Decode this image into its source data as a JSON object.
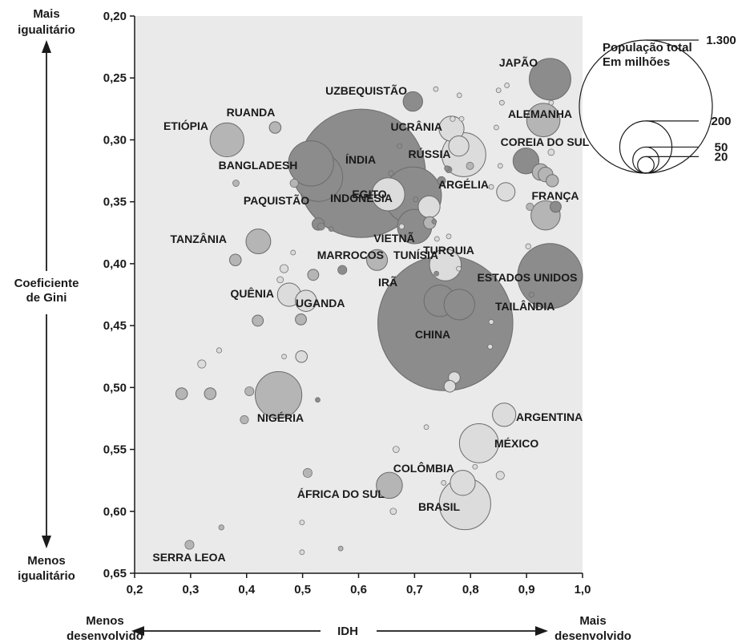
{
  "chart_data": {
    "type": "scatter",
    "xlabel": "IDH",
    "ylabel": "Coeficiente de Gini",
    "xlim": [
      0.2,
      1.0
    ],
    "ylim": [
      0.2,
      0.65
    ],
    "y_inverted": true,
    "grid": false,
    "x_ticks": [
      "0,2",
      "0,3",
      "0,4",
      "0,5",
      "0,6",
      "0,7",
      "0,8",
      "0,9",
      "1,0"
    ],
    "y_ticks": [
      "0,20",
      "0,25",
      "0,30",
      "0,35",
      "0,40",
      "0,45",
      "0,50",
      "0,55",
      "0,60",
      "0,65"
    ],
    "top_label": [
      "Mais",
      "igualitário"
    ],
    "bottom_label": [
      "Menos",
      "igualitário"
    ],
    "y_axis_title": [
      "Coeficiente",
      "de Gini"
    ],
    "x_left_label": [
      "Menos",
      "desenvolvido"
    ],
    "x_right_label": [
      "Mais",
      "desenvolvido"
    ],
    "legend": {
      "title": [
        "População total",
        "Em milhões"
      ],
      "sizes": [
        "1.300",
        "200",
        "50",
        "20"
      ],
      "size_values": [
        1300,
        200,
        50,
        20
      ],
      "placement": "top-right"
    },
    "colors": {
      "plot_bg": "#eaeaea",
      "dark": "#8c8c8c",
      "mid": "#b5b5b5",
      "light": "#dcdcdc",
      "stroke": "#6b6b6b"
    },
    "points": [
      {
        "label": "CHINA",
        "x": 0.755,
        "y": 0.448,
        "pop": 1340,
        "shade": "dark"
      },
      {
        "label": "ÍNDIA",
        "x": 0.605,
        "y": 0.327,
        "pop": 1210,
        "shade": "dark"
      },
      {
        "label": "ESTADOS UNIDOS",
        "x": 0.942,
        "y": 0.41,
        "pop": 310,
        "shade": "dark"
      },
      {
        "label": "INDONÉSIA",
        "x": 0.697,
        "y": 0.345,
        "pop": 240,
        "shade": "dark"
      },
      {
        "label": "BRASIL",
        "x": 0.79,
        "y": 0.594,
        "pop": 195,
        "shade": "light"
      },
      {
        "label": "PAQUISTÃO",
        "x": 0.528,
        "y": 0.33,
        "pop": 175,
        "shade": "dark"
      },
      {
        "label": "NIGÉRIA",
        "x": 0.457,
        "y": 0.506,
        "pop": 160,
        "shade": "mid"
      },
      {
        "label": "BANGLADESH",
        "x": 0.515,
        "y": 0.319,
        "pop": 150,
        "shade": "dark"
      },
      {
        "label": "RÚSSIA",
        "x": 0.788,
        "y": 0.312,
        "pop": 142,
        "shade": "light"
      },
      {
        "label": "JAPÃO",
        "x": 0.942,
        "y": 0.251,
        "pop": 127,
        "shade": "dark"
      },
      {
        "label": "MÉXICO",
        "x": 0.815,
        "y": 0.545,
        "pop": 112,
        "shade": "light"
      },
      {
        "label": "VIETNÃ",
        "x": 0.7,
        "y": 0.37,
        "pop": 87,
        "shade": "dark"
      },
      {
        "label": "ETIÓPIA",
        "x": 0.365,
        "y": 0.3,
        "pop": 85,
        "shade": "mid"
      },
      {
        "label": "ALEMANHA",
        "x": 0.93,
        "y": 0.284,
        "pop": 82,
        "shade": "mid"
      },
      {
        "label": "EGITO",
        "x": 0.653,
        "y": 0.344,
        "pop": 80,
        "shade": "light"
      },
      {
        "label": "IRÃ",
        "x": 0.755,
        "y": 0.401,
        "pop": 74,
        "shade": "light"
      },
      {
        "label": "TURQUIA",
        "x": 0.745,
        "y": 0.43,
        "pop": 73,
        "shade": "dark"
      },
      {
        "label": "TAILÂNDIA",
        "x": 0.78,
        "y": 0.433,
        "pop": 69,
        "shade": "dark"
      },
      {
        "label": "FRANÇA",
        "x": 0.934,
        "y": 0.361,
        "pop": 63,
        "shade": "mid"
      },
      {
        "label": "ÁFRICA DO SUL",
        "x": 0.655,
        "y": 0.579,
        "pop": 50,
        "shade": "mid"
      },
      {
        "label": "COREIA DO SUL",
        "x": 0.899,
        "y": 0.317,
        "pop": 49,
        "shade": "dark"
      },
      {
        "label": "COLÔMBIA",
        "x": 0.786,
        "y": 0.577,
        "pop": 46,
        "shade": "light"
      },
      {
        "label": "TANZÂNIA",
        "x": 0.421,
        "y": 0.382,
        "pop": 45,
        "shade": "mid"
      },
      {
        "label": "UCRÂNIA",
        "x": 0.766,
        "y": 0.291,
        "pop": 46,
        "shade": "light"
      },
      {
        "label": "ARGENTINA",
        "x": 0.86,
        "y": 0.522,
        "pop": 40,
        "shade": "light"
      },
      {
        "label": "QUÊNIA",
        "x": 0.476,
        "y": 0.425,
        "pop": 40,
        "shade": "light"
      },
      {
        "label": "ARGÉLIA",
        "x": 0.726,
        "y": 0.354,
        "pop": 35,
        "shade": "light"
      },
      {
        "label": "UGANDA",
        "x": 0.506,
        "y": 0.43,
        "pop": 33,
        "shade": "light"
      },
      {
        "label": "MARROCOS",
        "x": 0.633,
        "y": 0.397,
        "pop": 32,
        "shade": "mid"
      },
      {
        "label": "UZBEQUISTÃO",
        "x": 0.697,
        "y": 0.269,
        "pop": 28,
        "shade": "dark"
      },
      {
        "label": "TUNÍSIA",
        "x": 0.727,
        "y": 0.367,
        "pop": 11,
        "shade": "mid"
      },
      {
        "label": "RUANDA",
        "x": 0.451,
        "y": 0.29,
        "pop": 10,
        "shade": "mid"
      },
      {
        "label": "SERRA LEOA",
        "x": 0.298,
        "y": 0.627,
        "pop": 6,
        "shade": "mid"
      },
      {
        "x": 0.779,
        "y": 0.305,
        "pop": 30,
        "shade": "light"
      },
      {
        "x": 0.658,
        "y": 0.327,
        "pop": 2,
        "shade": "dark"
      },
      {
        "x": 0.758,
        "y": 0.323,
        "pop": 2,
        "shade": "dark"
      },
      {
        "x": 0.799,
        "y": 0.321,
        "pop": 4,
        "shade": "mid"
      },
      {
        "x": 0.761,
        "y": 0.324,
        "pop": 3,
        "shade": "dark"
      },
      {
        "x": 0.748,
        "y": 0.333,
        "pop": 5,
        "shade": "dark"
      },
      {
        "x": 0.768,
        "y": 0.283,
        "pop": 2,
        "shade": "light"
      },
      {
        "x": 0.78,
        "y": 0.264,
        "pop": 1,
        "shade": "light"
      },
      {
        "x": 0.784,
        "y": 0.283,
        "pop": 1,
        "shade": "light"
      },
      {
        "x": 0.738,
        "y": 0.259,
        "pop": 1,
        "shade": "light"
      },
      {
        "x": 0.85,
        "y": 0.26,
        "pop": 1,
        "shade": "light"
      },
      {
        "x": 0.865,
        "y": 0.256,
        "pop": 1,
        "shade": "light"
      },
      {
        "x": 0.856,
        "y": 0.27,
        "pop": 1,
        "shade": "light"
      },
      {
        "x": 0.944,
        "y": 0.27,
        "pop": 1,
        "shade": "light"
      },
      {
        "x": 0.846,
        "y": 0.29,
        "pop": 1,
        "shade": "light"
      },
      {
        "x": 0.944,
        "y": 0.31,
        "pop": 3,
        "shade": "light"
      },
      {
        "x": 0.925,
        "y": 0.326,
        "pop": 20,
        "shade": "mid"
      },
      {
        "x": 0.934,
        "y": 0.328,
        "pop": 16,
        "shade": "mid"
      },
      {
        "x": 0.946,
        "y": 0.333,
        "pop": 11,
        "shade": "mid"
      },
      {
        "x": 0.863,
        "y": 0.342,
        "pop": 25,
        "shade": "light"
      },
      {
        "x": 0.837,
        "y": 0.338,
        "pop": 1,
        "shade": "light"
      },
      {
        "x": 0.853,
        "y": 0.321,
        "pop": 1,
        "shade": "light"
      },
      {
        "x": 0.906,
        "y": 0.354,
        "pop": 4,
        "shade": "mid"
      },
      {
        "x": 0.952,
        "y": 0.354,
        "pop": 9,
        "shade": "dark"
      },
      {
        "x": 0.735,
        "y": 0.366,
        "pop": 1,
        "shade": "dark"
      },
      {
        "x": 0.677,
        "y": 0.37,
        "pop": 2,
        "shade": "light"
      },
      {
        "x": 0.673,
        "y": 0.305,
        "pop": 1,
        "shade": "dark"
      },
      {
        "x": 0.74,
        "y": 0.38,
        "pop": 1,
        "shade": "light"
      },
      {
        "x": 0.761,
        "y": 0.378,
        "pop": 1,
        "shade": "light"
      },
      {
        "x": 0.528,
        "y": 0.368,
        "pop": 11,
        "shade": "dark"
      },
      {
        "x": 0.533,
        "y": 0.37,
        "pop": 4,
        "shade": "dark"
      },
      {
        "x": 0.551,
        "y": 0.372,
        "pop": 1,
        "shade": "dark"
      },
      {
        "x": 0.485,
        "y": 0.335,
        "pop": 5,
        "shade": "mid"
      },
      {
        "x": 0.381,
        "y": 0.335,
        "pop": 3,
        "shade": "mid"
      },
      {
        "x": 0.702,
        "y": 0.348,
        "pop": 1,
        "shade": "dark"
      },
      {
        "x": 0.571,
        "y": 0.405,
        "pop": 6,
        "shade": "dark"
      },
      {
        "x": 0.519,
        "y": 0.409,
        "pop": 9,
        "shade": "mid"
      },
      {
        "x": 0.483,
        "y": 0.391,
        "pop": 1,
        "shade": "light"
      },
      {
        "x": 0.467,
        "y": 0.404,
        "pop": 5,
        "shade": "light"
      },
      {
        "x": 0.46,
        "y": 0.413,
        "pop": 3,
        "shade": "light"
      },
      {
        "x": 0.38,
        "y": 0.397,
        "pop": 10,
        "shade": "mid"
      },
      {
        "x": 0.497,
        "y": 0.445,
        "pop": 9,
        "shade": "mid"
      },
      {
        "x": 0.42,
        "y": 0.446,
        "pop": 9,
        "shade": "mid"
      },
      {
        "x": 0.739,
        "y": 0.408,
        "pop": 1,
        "shade": "dark"
      },
      {
        "x": 0.779,
        "y": 0.404,
        "pop": 1,
        "shade": "light"
      },
      {
        "x": 0.903,
        "y": 0.386,
        "pop": 2,
        "shade": "light"
      },
      {
        "x": 0.909,
        "y": 0.425,
        "pop": 2,
        "shade": "dark"
      },
      {
        "x": 0.917,
        "y": 0.434,
        "pop": 1,
        "shade": "dark"
      },
      {
        "x": 0.837,
        "y": 0.447,
        "pop": 1,
        "shade": "light"
      },
      {
        "x": 0.835,
        "y": 0.467,
        "pop": 1,
        "shade": "light"
      },
      {
        "x": 0.771,
        "y": 0.492,
        "pop": 10,
        "shade": "light"
      },
      {
        "x": 0.763,
        "y": 0.499,
        "pop": 10,
        "shade": "light"
      },
      {
        "x": 0.498,
        "y": 0.475,
        "pop": 10,
        "shade": "light"
      },
      {
        "x": 0.467,
        "y": 0.475,
        "pop": 1,
        "shade": "light"
      },
      {
        "x": 0.351,
        "y": 0.47,
        "pop": 2,
        "shade": "light"
      },
      {
        "x": 0.32,
        "y": 0.481,
        "pop": 5,
        "shade": "light"
      },
      {
        "x": 0.284,
        "y": 0.505,
        "pop": 10,
        "shade": "mid"
      },
      {
        "x": 0.335,
        "y": 0.505,
        "pop": 10,
        "shade": "mid"
      },
      {
        "x": 0.405,
        "y": 0.503,
        "pop": 6,
        "shade": "mid"
      },
      {
        "x": 0.396,
        "y": 0.526,
        "pop": 5,
        "shade": "mid"
      },
      {
        "x": 0.527,
        "y": 0.51,
        "pop": 1,
        "shade": "dark"
      },
      {
        "x": 0.721,
        "y": 0.532,
        "pop": 1,
        "shade": "light"
      },
      {
        "x": 0.667,
        "y": 0.55,
        "pop": 3,
        "shade": "light"
      },
      {
        "x": 0.808,
        "y": 0.564,
        "pop": 1,
        "shade": "light"
      },
      {
        "x": 0.853,
        "y": 0.571,
        "pop": 5,
        "shade": "light"
      },
      {
        "x": 0.752,
        "y": 0.577,
        "pop": 1,
        "shade": "light"
      },
      {
        "x": 0.509,
        "y": 0.569,
        "pop": 6,
        "shade": "mid"
      },
      {
        "x": 0.662,
        "y": 0.6,
        "pop": 3,
        "shade": "light"
      },
      {
        "x": 0.355,
        "y": 0.613,
        "pop": 2,
        "shade": "mid"
      },
      {
        "x": 0.499,
        "y": 0.609,
        "pop": 1,
        "shade": "light"
      },
      {
        "x": 0.568,
        "y": 0.63,
        "pop": 1,
        "shade": "mid"
      },
      {
        "x": 0.499,
        "y": 0.633,
        "pop": 1,
        "shade": "light"
      }
    ]
  }
}
